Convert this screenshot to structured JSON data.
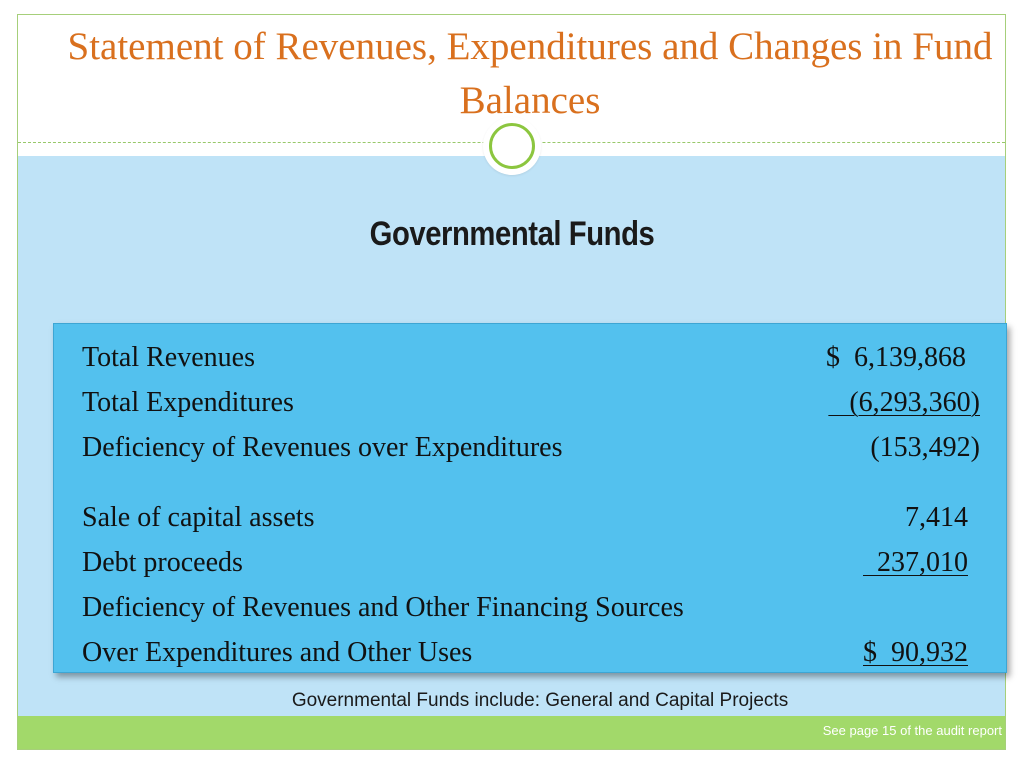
{
  "slide": {
    "title": "Statement of Revenues, Expenditures and Changes in Fund Balances",
    "subtitle": "Governmental Funds"
  },
  "statement": {
    "rows": [
      {
        "label": "Total Revenues",
        "amount": "$  6,139,868"
      },
      {
        "label": "Total Expenditures",
        "amount": "   (6,293,360)"
      },
      {
        "label": "Deficiency of Revenues over Expenditures",
        "amount": "(153,492)"
      },
      {
        "label": "Sale of capital assets",
        "amount": "7,414"
      },
      {
        "label": "Debt proceeds",
        "amount": "  237,010"
      },
      {
        "label": "Deficiency of Revenues and Other Financing Sources",
        "amount": ""
      },
      {
        "label": "Over Expenditures and Other Uses",
        "amount": "$  90,932"
      }
    ]
  },
  "footnote": "Governmental Funds include: General and Capital Projects",
  "source_note": "See page 15 of the audit report",
  "colors": {
    "title": "#d9701e",
    "panel": "#53c1ee",
    "background_blue": "#bfe3f7",
    "accent_green": "#a2d96a"
  }
}
